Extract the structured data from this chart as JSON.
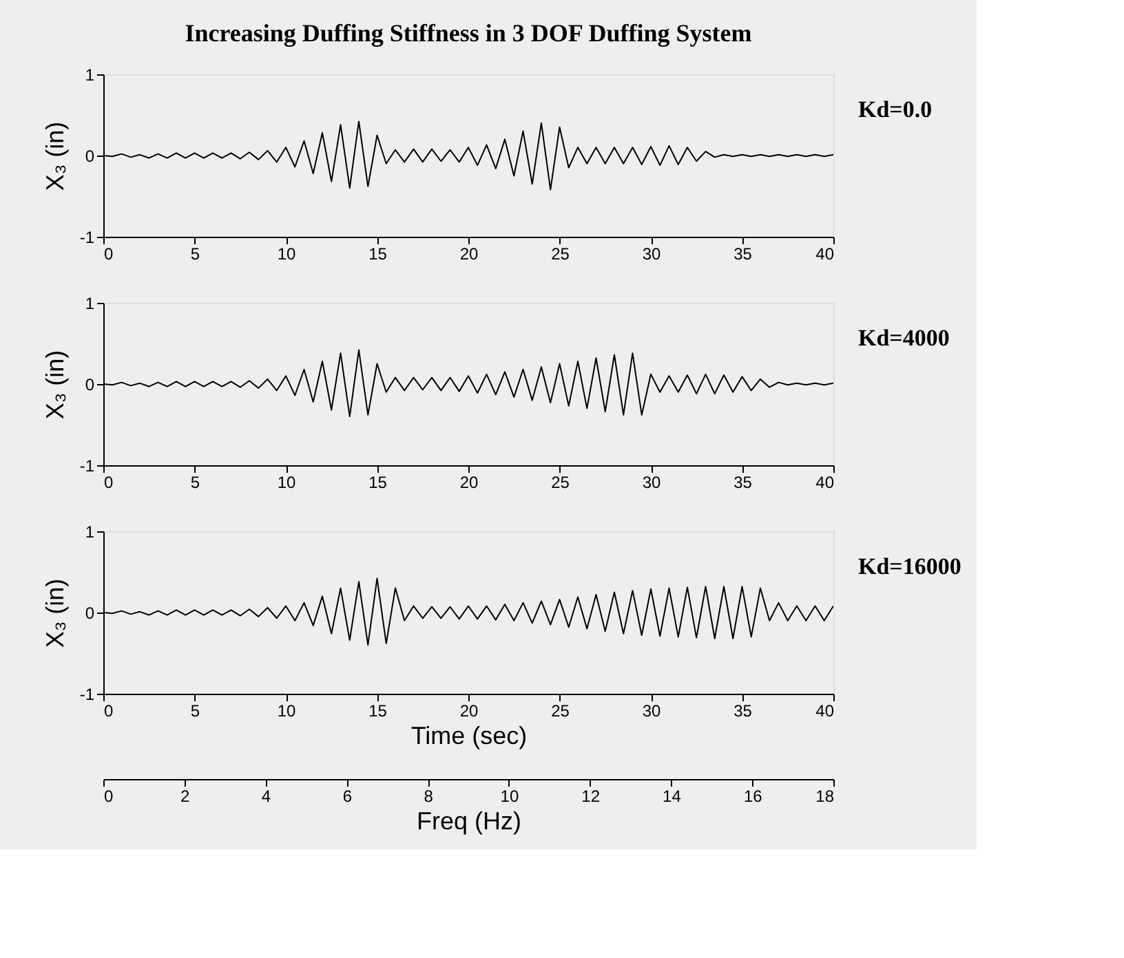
{
  "chart_data": [
    {
      "type": "line",
      "title": "Increasing Duffing Stiffness in 3 DOF Duffing System",
      "ylabel": "X₃ (in)",
      "xlim": [
        0,
        40
      ],
      "xticks": [
        0,
        5,
        10,
        15,
        20,
        25,
        30,
        35,
        40
      ],
      "ylim": [
        -1,
        1
      ],
      "yticks": [
        -1,
        0,
        1
      ],
      "x": [
        0,
        0.5,
        1,
        1.5,
        2,
        2.5,
        3,
        3.5,
        4,
        4.5,
        5,
        5.5,
        6,
        6.5,
        7,
        7.5,
        8,
        8.5,
        9,
        9.5,
        10,
        10.5,
        11,
        11.5,
        12,
        12.5,
        13,
        13.5,
        14,
        14.5,
        15,
        15.5,
        16,
        16.5,
        17,
        17.5,
        18,
        18.5,
        19,
        19.5,
        20,
        20.5,
        21,
        21.5,
        22,
        22.5,
        23,
        23.5,
        24,
        24.5,
        25,
        25.5,
        26,
        26.5,
        27,
        27.5,
        28,
        28.5,
        29,
        29.5,
        30,
        30.5,
        31,
        31.5,
        32,
        32.5,
        33,
        33.5,
        34,
        34.5,
        35,
        35.5,
        36,
        36.5,
        37,
        37.5,
        38,
        38.5,
        39,
        39.5,
        40
      ],
      "series": [
        {
          "name": "Kd=0.0",
          "color": "#000000",
          "values": [
            0,
            -0.01,
            0.02,
            -0.02,
            0.01,
            -0.03,
            0.02,
            -0.03,
            0.03,
            -0.03,
            0.03,
            -0.03,
            0.03,
            -0.03,
            0.03,
            -0.04,
            0.04,
            -0.05,
            0.06,
            -0.08,
            0.1,
            -0.14,
            0.18,
            -0.22,
            0.28,
            -0.32,
            0.38,
            -0.4,
            0.42,
            -0.38,
            0.25,
            -0.1,
            0.07,
            -0.08,
            0.08,
            -0.08,
            0.08,
            -0.07,
            0.07,
            -0.08,
            0.1,
            -0.12,
            0.13,
            -0.16,
            0.2,
            -0.25,
            0.3,
            -0.35,
            0.4,
            -0.42,
            0.35,
            -0.15,
            0.1,
            -0.1,
            0.1,
            -0.1,
            0.1,
            -0.1,
            0.1,
            -0.11,
            0.11,
            -0.12,
            0.12,
            -0.11,
            0.1,
            -0.07,
            0.05,
            -0.02,
            0.01,
            -0.01,
            0.01,
            -0.01,
            0.01,
            -0.01,
            0.01,
            -0.01,
            0.01,
            -0.01,
            0.01,
            -0.01,
            0.01
          ]
        }
      ]
    },
    {
      "type": "line",
      "ylabel": "X₃ (in)",
      "xlim": [
        0,
        40
      ],
      "xticks": [
        0,
        5,
        10,
        15,
        20,
        25,
        30,
        35,
        40
      ],
      "ylim": [
        -1,
        1
      ],
      "yticks": [
        -1,
        0,
        1
      ],
      "x": [
        0,
        0.5,
        1,
        1.5,
        2,
        2.5,
        3,
        3.5,
        4,
        4.5,
        5,
        5.5,
        6,
        6.5,
        7,
        7.5,
        8,
        8.5,
        9,
        9.5,
        10,
        10.5,
        11,
        11.5,
        12,
        12.5,
        13,
        13.5,
        14,
        14.5,
        15,
        15.5,
        16,
        16.5,
        17,
        17.5,
        18,
        18.5,
        19,
        19.5,
        20,
        20.5,
        21,
        21.5,
        22,
        22.5,
        23,
        23.5,
        24,
        24.5,
        25,
        25.5,
        26,
        26.5,
        27,
        27.5,
        28,
        28.5,
        29,
        29.5,
        30,
        30.5,
        31,
        31.5,
        32,
        32.5,
        33,
        33.5,
        34,
        34.5,
        35,
        35.5,
        36,
        36.5,
        37,
        37.5,
        38,
        38.5,
        39,
        39.5,
        40
      ],
      "series": [
        {
          "name": "Kd=4000",
          "color": "#000000",
          "values": [
            0,
            -0.01,
            0.02,
            -0.02,
            0.01,
            -0.03,
            0.02,
            -0.03,
            0.03,
            -0.03,
            0.03,
            -0.03,
            0.03,
            -0.03,
            0.03,
            -0.04,
            0.04,
            -0.05,
            0.06,
            -0.08,
            0.1,
            -0.14,
            0.18,
            -0.22,
            0.28,
            -0.32,
            0.38,
            -0.4,
            0.42,
            -0.38,
            0.25,
            -0.1,
            0.08,
            -0.08,
            0.08,
            -0.07,
            0.08,
            -0.08,
            0.08,
            -0.09,
            0.1,
            -0.11,
            0.12,
            -0.13,
            0.15,
            -0.16,
            0.18,
            -0.2,
            0.21,
            -0.23,
            0.25,
            -0.27,
            0.28,
            -0.3,
            0.32,
            -0.34,
            0.36,
            -0.38,
            0.38,
            -0.38,
            0.12,
            -0.1,
            0.1,
            -0.1,
            0.11,
            -0.12,
            0.12,
            -0.12,
            0.11,
            -0.1,
            0.09,
            -0.08,
            0.06,
            -0.04,
            0.02,
            -0.01,
            0.01,
            -0.01,
            0.01,
            -0.01,
            0.01
          ]
        }
      ]
    },
    {
      "type": "line",
      "ylabel": "X₃ (in)",
      "xlabel": "Time (sec)",
      "x2label": "Freq (Hz)",
      "xlim": [
        0,
        40
      ],
      "xticks": [
        0,
        5,
        10,
        15,
        20,
        25,
        30,
        35,
        40
      ],
      "x2lim": [
        0,
        18
      ],
      "x2ticks": [
        0,
        2,
        4,
        6,
        8,
        10,
        12,
        14,
        16,
        18
      ],
      "ylim": [
        -1,
        1
      ],
      "yticks": [
        -1,
        0,
        1
      ],
      "x": [
        0,
        0.5,
        1,
        1.5,
        2,
        2.5,
        3,
        3.5,
        4,
        4.5,
        5,
        5.5,
        6,
        6.5,
        7,
        7.5,
        8,
        8.5,
        9,
        9.5,
        10,
        10.5,
        11,
        11.5,
        12,
        12.5,
        13,
        13.5,
        14,
        14.5,
        15,
        15.5,
        16,
        16.5,
        17,
        17.5,
        18,
        18.5,
        19,
        19.5,
        20,
        20.5,
        21,
        21.5,
        22,
        22.5,
        23,
        23.5,
        24,
        24.5,
        25,
        25.5,
        26,
        26.5,
        27,
        27.5,
        28,
        28.5,
        29,
        29.5,
        30,
        30.5,
        31,
        31.5,
        32,
        32.5,
        33,
        33.5,
        34,
        34.5,
        35,
        35.5,
        36,
        36.5,
        37,
        37.5,
        38,
        38.5,
        39,
        39.5,
        40
      ],
      "series": [
        {
          "name": "Kd=16000",
          "color": "#000000",
          "values": [
            0,
            -0.01,
            0.02,
            -0.02,
            0.01,
            -0.03,
            0.02,
            -0.03,
            0.03,
            -0.03,
            0.03,
            -0.03,
            0.03,
            -0.03,
            0.03,
            -0.04,
            0.04,
            -0.05,
            0.06,
            -0.07,
            0.08,
            -0.1,
            0.12,
            -0.16,
            0.2,
            -0.26,
            0.3,
            -0.34,
            0.38,
            -0.4,
            0.42,
            -0.38,
            0.3,
            -0.1,
            0.08,
            -0.07,
            0.07,
            -0.07,
            0.07,
            -0.08,
            0.08,
            -0.08,
            0.08,
            -0.09,
            0.1,
            -0.1,
            0.12,
            -0.13,
            0.14,
            -0.15,
            0.16,
            -0.18,
            0.19,
            -0.2,
            0.22,
            -0.23,
            0.25,
            -0.26,
            0.27,
            -0.28,
            0.29,
            -0.29,
            0.3,
            -0.3,
            0.31,
            -0.31,
            0.32,
            -0.32,
            0.32,
            -0.32,
            0.32,
            -0.3,
            0.3,
            -0.1,
            0.12,
            -0.1,
            0.08,
            -0.1,
            0.08,
            -0.1,
            0.08
          ]
        }
      ]
    }
  ]
}
